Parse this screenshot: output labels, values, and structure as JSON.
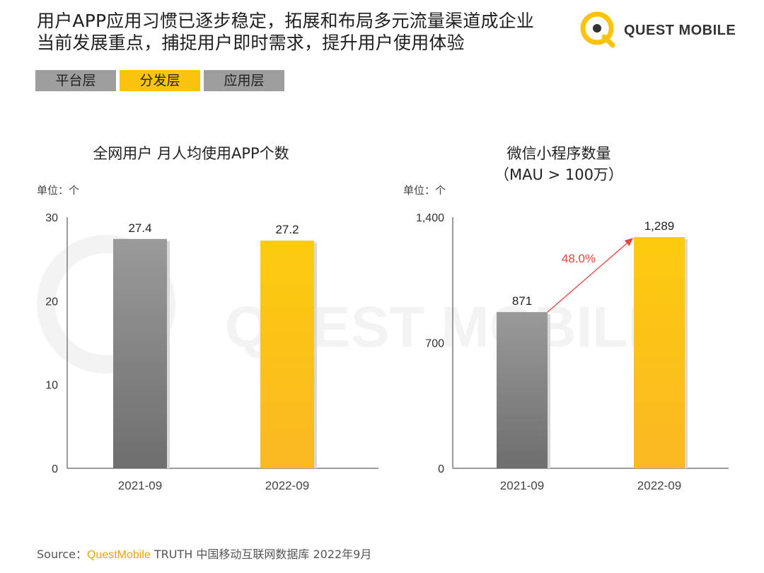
{
  "headline": {
    "line1": "用户APP应用习惯已逐步稳定，拓展和布局多元流量渠道成企业",
    "line2": "当前发展重点，捕捉用户即时需求，提升用户使用体验"
  },
  "logo": {
    "text": "QUEST MOBILE",
    "watermark_text": "QUEST MOBILE"
  },
  "tabs": [
    {
      "label": "平台层",
      "active": false
    },
    {
      "label": "分发层",
      "active": true
    },
    {
      "label": "应用层",
      "active": false
    }
  ],
  "colors": {
    "gray_bar": "#8a8a8a",
    "yellow_bar": "#fcc30d",
    "growth_arrow": "#e4453f",
    "brand": "#e5a50a"
  },
  "chart_data": [
    {
      "type": "bar",
      "title": "全网用户 月人均使用APP个数",
      "unit_label": "单位：个",
      "categories": [
        "2021-09",
        "2022-09"
      ],
      "values": [
        27.4,
        27.2
      ],
      "value_labels": [
        "27.4",
        "27.2"
      ],
      "ylim": [
        0,
        30
      ],
      "yticks": [
        0,
        10,
        20,
        30
      ],
      "ytick_labels": [
        "0",
        "10",
        "20",
        "30"
      ],
      "bar_colors": [
        "gray",
        "yellow"
      ],
      "grid": false
    },
    {
      "type": "bar",
      "title_line1": "微信小程序数量",
      "title_line2": "（MAU > 100万）",
      "unit_label": "单位：个",
      "categories": [
        "2021-09",
        "2022-09"
      ],
      "values": [
        871,
        1289
      ],
      "value_labels": [
        "871",
        "1,289"
      ],
      "ylim": [
        0,
        1400
      ],
      "yticks": [
        0,
        700,
        1400
      ],
      "ytick_labels": [
        "0",
        "700",
        "1,400"
      ],
      "bar_colors": [
        "gray",
        "yellow"
      ],
      "growth_label": "48.0%",
      "grid": false
    }
  ],
  "source": {
    "prefix": "Source：",
    "brand": "QuestMobile",
    "rest": " TRUTH 中国移动互联网数据库 2022年9月"
  }
}
